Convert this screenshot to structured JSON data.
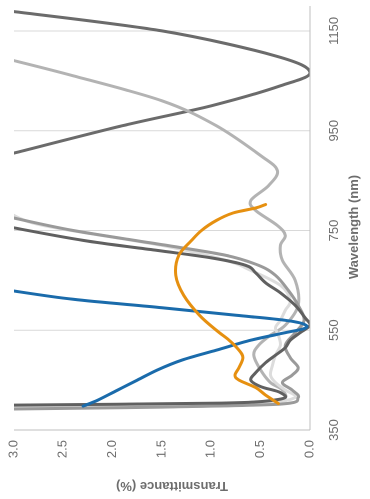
{
  "chart_data": {
    "type": "line",
    "title": "",
    "xlabel": "Wavelength (nm)",
    "ylabel": "Transmittance (%)",
    "xlim": [
      350,
      1200
    ],
    "ylim": [
      0,
      3.0
    ],
    "x_ticks": [
      350,
      550,
      750,
      950,
      1150
    ],
    "y_ticks": [
      0.0,
      0.5,
      1.0,
      1.5,
      2.0,
      2.5,
      3.0
    ],
    "x_tick_labels": [
      "350",
      "550",
      "750",
      "950",
      "1150"
    ],
    "y_tick_labels": [
      "0.0",
      "0.5",
      "1.0",
      "1.5",
      "2.0",
      "2.5",
      "3.0"
    ],
    "grid": "vertical lines at x ticks",
    "legend": "none",
    "series": [
      {
        "color": "#6b6b6b",
        "points": [
          [
            900,
            3.1
          ],
          [
            960,
            1.9
          ],
          [
            1000,
            1.0
          ],
          [
            1040,
            0.3
          ],
          [
            1067,
            0.0
          ],
          [
            1100,
            0.35
          ],
          [
            1150,
            1.5
          ],
          [
            1190,
            3.05
          ]
        ]
      },
      {
        "color": "#b3b3b3",
        "points": [
          [
            1093,
            3.05
          ],
          [
            1060,
            2.4
          ],
          [
            1010,
            1.5
          ],
          [
            960,
            0.95
          ],
          [
            900,
            0.5
          ],
          [
            870,
            0.33
          ],
          [
            840,
            0.42
          ],
          [
            810,
            0.6
          ],
          [
            790,
            0.55
          ],
          [
            760,
            0.33
          ],
          [
            740,
            0.25
          ],
          [
            720,
            0.3
          ],
          [
            690,
            0.28
          ],
          [
            650,
            0.15
          ],
          [
            600,
            0.12
          ],
          [
            560,
            0.25
          ],
          [
            540,
            0.4
          ],
          [
            520,
            0.52
          ],
          [
            500,
            0.57
          ],
          [
            470,
            0.5
          ],
          [
            445,
            0.4
          ],
          [
            430,
            0.28
          ],
          [
            410,
            0.3
          ],
          [
            400,
            0.9
          ],
          [
            394,
            3.05
          ]
        ]
      },
      {
        "color": "#dcdcdc",
        "points": [
          [
            785,
            3.05
          ],
          [
            760,
            2.7
          ],
          [
            720,
            1.5
          ],
          [
            690,
            0.85
          ],
          [
            670,
            0.6
          ],
          [
            640,
            0.3
          ],
          [
            610,
            0.2
          ],
          [
            590,
            0.25
          ],
          [
            570,
            0.3
          ],
          [
            555,
            0.35
          ],
          [
            540,
            0.32
          ],
          [
            520,
            0.3
          ],
          [
            500,
            0.35
          ],
          [
            480,
            0.38
          ],
          [
            460,
            0.4
          ],
          [
            445,
            0.35
          ],
          [
            430,
            0.25
          ],
          [
            415,
            0.15
          ],
          [
            405,
            0.5
          ],
          [
            398,
            1.8
          ],
          [
            394,
            3.05
          ]
        ]
      },
      {
        "color": "#9a9a9a",
        "points": [
          [
            777,
            3.05
          ],
          [
            750,
            2.4
          ],
          [
            720,
            1.45
          ],
          [
            700,
            0.85
          ],
          [
            680,
            0.52
          ],
          [
            660,
            0.35
          ],
          [
            630,
            0.22
          ],
          [
            600,
            0.12
          ],
          [
            570,
            0.06
          ],
          [
            545,
            0.15
          ],
          [
            520,
            0.25
          ],
          [
            495,
            0.2
          ],
          [
            475,
            0.12
          ],
          [
            460,
            0.18
          ],
          [
            445,
            0.28
          ],
          [
            430,
            0.18
          ],
          [
            415,
            0.12
          ],
          [
            402,
            0.3
          ],
          [
            396,
            1.5
          ],
          [
            392,
            3.05
          ]
        ]
      },
      {
        "color": "#606060",
        "points": [
          [
            757,
            3.05
          ],
          [
            730,
            2.3
          ],
          [
            710,
            1.55
          ],
          [
            695,
            1.0
          ],
          [
            680,
            0.65
          ],
          [
            665,
            0.55
          ],
          [
            645,
            0.45
          ],
          [
            625,
            0.3
          ],
          [
            600,
            0.15
          ],
          [
            575,
            0.05
          ],
          [
            560,
            0.0
          ],
          [
            545,
            0.1
          ],
          [
            530,
            0.2
          ],
          [
            515,
            0.25
          ],
          [
            500,
            0.35
          ],
          [
            485,
            0.45
          ],
          [
            465,
            0.55
          ],
          [
            450,
            0.6
          ],
          [
            437,
            0.5
          ],
          [
            425,
            0.3
          ],
          [
            412,
            0.3
          ],
          [
            404,
            0.9
          ],
          [
            400,
            3.05
          ]
        ]
      },
      {
        "color": "#1a6bab",
        "points": [
          [
            630,
            3.05
          ],
          [
            612,
            2.4
          ],
          [
            595,
            1.5
          ],
          [
            580,
            0.75
          ],
          [
            570,
            0.25
          ],
          [
            562,
            0.06
          ],
          [
            554,
            0.05
          ],
          [
            545,
            0.25
          ],
          [
            530,
            0.6
          ],
          [
            510,
            0.95
          ],
          [
            490,
            1.3
          ],
          [
            470,
            1.55
          ],
          [
            450,
            1.75
          ],
          [
            430,
            1.95
          ],
          [
            410,
            2.15
          ],
          [
            398,
            2.3
          ]
        ]
      },
      {
        "color": "#e69010",
        "points": [
          [
            403,
            0.32
          ],
          [
            420,
            0.45
          ],
          [
            435,
            0.55
          ],
          [
            450,
            0.72
          ],
          [
            460,
            0.76
          ],
          [
            475,
            0.72
          ],
          [
            495,
            0.68
          ],
          [
            510,
            0.72
          ],
          [
            530,
            0.82
          ],
          [
            550,
            0.95
          ],
          [
            580,
            1.12
          ],
          [
            620,
            1.28
          ],
          [
            660,
            1.36
          ],
          [
            700,
            1.33
          ],
          [
            730,
            1.2
          ],
          [
            750,
            1.1
          ],
          [
            770,
            0.95
          ],
          [
            785,
            0.78
          ],
          [
            795,
            0.55
          ],
          [
            802,
            0.45
          ]
        ]
      }
    ]
  }
}
